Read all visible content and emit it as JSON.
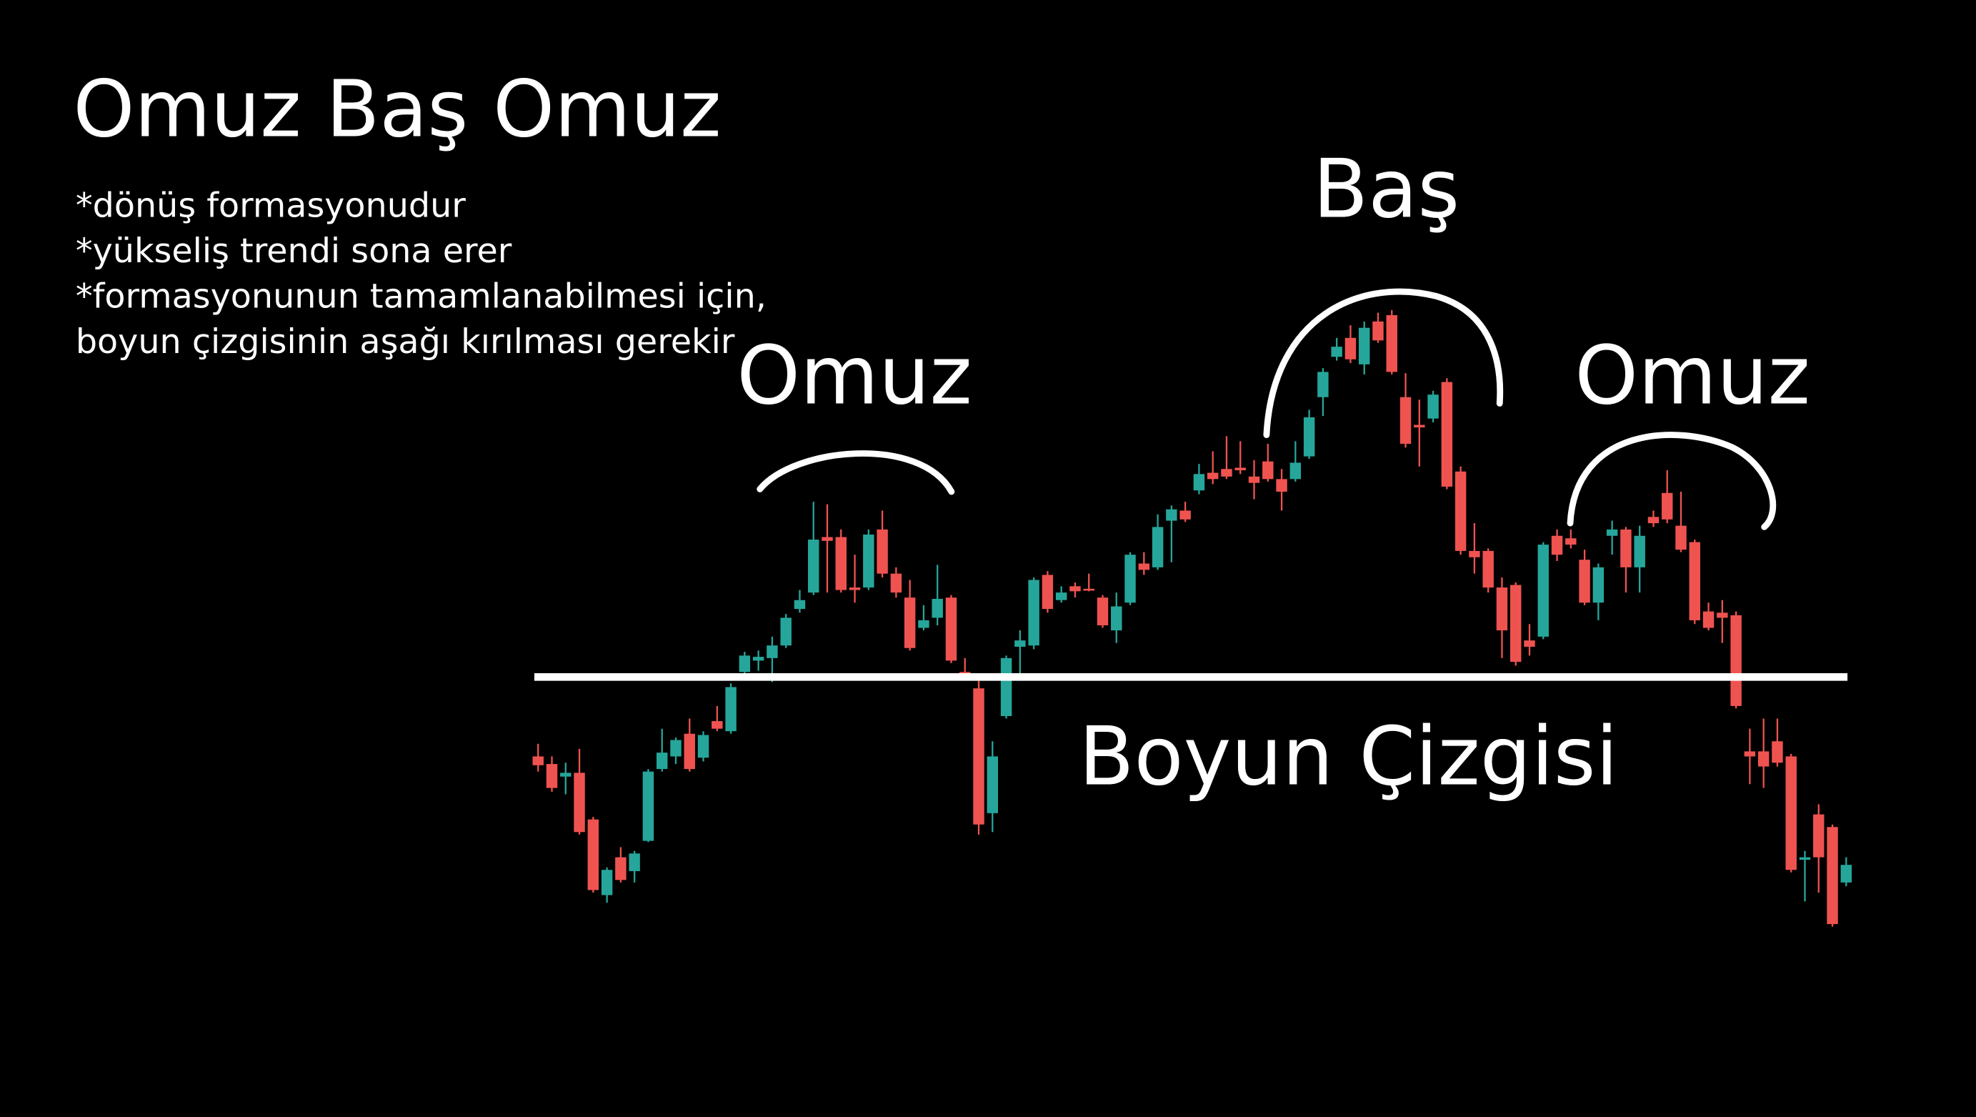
{
  "chart_data": {
    "type": "candlestick",
    "title": "Omuz Baş Omuz",
    "notes": [
      "*dönüş formasyonudur",
      "*yükseliş trendi sona erer",
      "*formasyonunun tamamlanabilmesi için,",
      "boyun çizgisinin aşağı kırılması gerekir"
    ],
    "labels": {
      "left_shoulder": "Omuz",
      "head": "Baş",
      "right_shoulder": "Omuz",
      "neckline": "Boyun Çizgisi"
    },
    "up_color": "#26a69a",
    "down_color": "#ef5350",
    "ylim": [
      0,
      886
    ],
    "ohlc": [
      [
        286,
        296,
        274,
        279
      ],
      [
        280,
        286,
        258,
        261
      ],
      [
        270,
        281,
        256,
        273
      ],
      [
        273,
        292,
        224,
        226
      ],
      [
        236,
        238,
        178,
        180
      ],
      [
        176,
        198,
        170,
        196
      ],
      [
        206,
        214,
        186,
        188
      ],
      [
        195,
        211,
        186,
        209
      ],
      [
        219,
        276,
        218,
        274
      ],
      [
        276,
        308,
        274,
        289
      ],
      [
        286,
        301,
        280,
        299
      ],
      [
        304,
        316,
        274,
        276
      ],
      [
        285,
        306,
        282,
        303
      ],
      [
        314,
        326,
        306,
        308
      ],
      [
        306,
        344,
        304,
        341
      ],
      [
        353,
        369,
        348,
        366
      ],
      [
        362,
        370,
        354,
        365
      ],
      [
        364,
        381,
        345,
        374
      ],
      [
        374,
        399,
        372,
        396
      ],
      [
        403,
        418,
        400,
        410
      ],
      [
        416,
        488,
        414,
        458
      ],
      [
        460,
        486,
        416,
        457
      ],
      [
        460,
        466,
        416,
        418
      ],
      [
        420,
        446,
        408,
        418
      ],
      [
        420,
        466,
        418,
        462
      ],
      [
        466,
        481,
        428,
        431
      ],
      [
        431,
        436,
        412,
        416
      ],
      [
        412,
        426,
        370,
        372
      ],
      [
        388,
        406,
        386,
        394
      ],
      [
        396,
        438,
        390,
        411
      ],
      [
        412,
        414,
        360,
        362
      ],
      [
        353,
        364,
        346,
        349
      ],
      [
        340,
        346,
        224,
        232
      ],
      [
        241,
        298,
        226,
        286
      ],
      [
        318,
        366,
        316,
        364
      ],
      [
        373,
        386,
        346,
        378
      ],
      [
        374,
        428,
        371,
        426
      ],
      [
        430,
        433,
        400,
        403
      ],
      [
        410,
        421,
        408,
        416
      ],
      [
        421,
        424,
        412,
        417
      ],
      [
        419,
        431,
        417,
        418
      ],
      [
        412,
        414,
        388,
        390
      ],
      [
        386,
        416,
        376,
        405
      ],
      [
        408,
        448,
        406,
        446
      ],
      [
        439,
        448,
        430,
        434
      ],
      [
        436,
        478,
        434,
        468
      ],
      [
        473,
        485,
        440,
        482
      ],
      [
        481,
        488,
        472,
        474
      ],
      [
        497,
        518,
        494,
        510
      ],
      [
        511,
        528,
        502,
        506
      ],
      [
        514,
        540,
        506,
        508
      ],
      [
        515,
        536,
        510,
        513
      ],
      [
        508,
        521,
        490,
        503
      ],
      [
        520,
        534,
        504,
        506
      ],
      [
        506,
        514,
        481,
        496
      ],
      [
        506,
        536,
        504,
        519
      ],
      [
        524,
        561,
        522,
        555
      ],
      [
        571,
        594,
        556,
        591
      ],
      [
        603,
        618,
        600,
        611
      ],
      [
        618,
        628,
        598,
        601
      ],
      [
        597,
        631,
        589,
        626
      ],
      [
        631,
        638,
        614,
        616
      ],
      [
        636,
        640,
        589,
        591
      ],
      [
        571,
        590,
        531,
        534
      ],
      [
        549,
        569,
        516,
        547
      ],
      [
        554,
        576,
        551,
        573
      ],
      [
        583,
        586,
        498,
        500
      ],
      [
        512,
        516,
        446,
        449
      ],
      [
        449,
        471,
        431,
        444
      ],
      [
        449,
        451,
        416,
        420
      ],
      [
        420,
        428,
        364,
        386
      ],
      [
        422,
        424,
        358,
        361
      ],
      [
        378,
        391,
        366,
        373
      ],
      [
        381,
        456,
        379,
        454
      ],
      [
        461,
        466,
        441,
        446
      ],
      [
        459,
        466,
        451,
        454
      ],
      [
        442,
        450,
        406,
        408
      ],
      [
        408,
        439,
        394,
        436
      ],
      [
        461,
        473,
        446,
        466
      ],
      [
        466,
        468,
        416,
        436
      ],
      [
        436,
        469,
        416,
        461
      ],
      [
        476,
        481,
        468,
        471
      ],
      [
        495,
        513,
        471,
        474
      ],
      [
        469,
        496,
        448,
        450
      ],
      [
        456,
        458,
        391,
        394
      ],
      [
        401,
        408,
        386,
        388
      ],
      [
        400,
        410,
        376,
        396
      ],
      [
        398,
        401,
        324,
        326
      ],
      [
        290,
        308,
        264,
        286
      ],
      [
        290,
        316,
        261,
        278
      ],
      [
        298,
        316,
        278,
        281
      ],
      [
        286,
        288,
        194,
        196
      ],
      [
        204,
        211,
        171,
        206
      ],
      [
        240,
        248,
        178,
        206
      ],
      [
        230,
        232,
        151,
        153
      ],
      [
        186,
        206,
        183,
        200
      ]
    ]
  }
}
